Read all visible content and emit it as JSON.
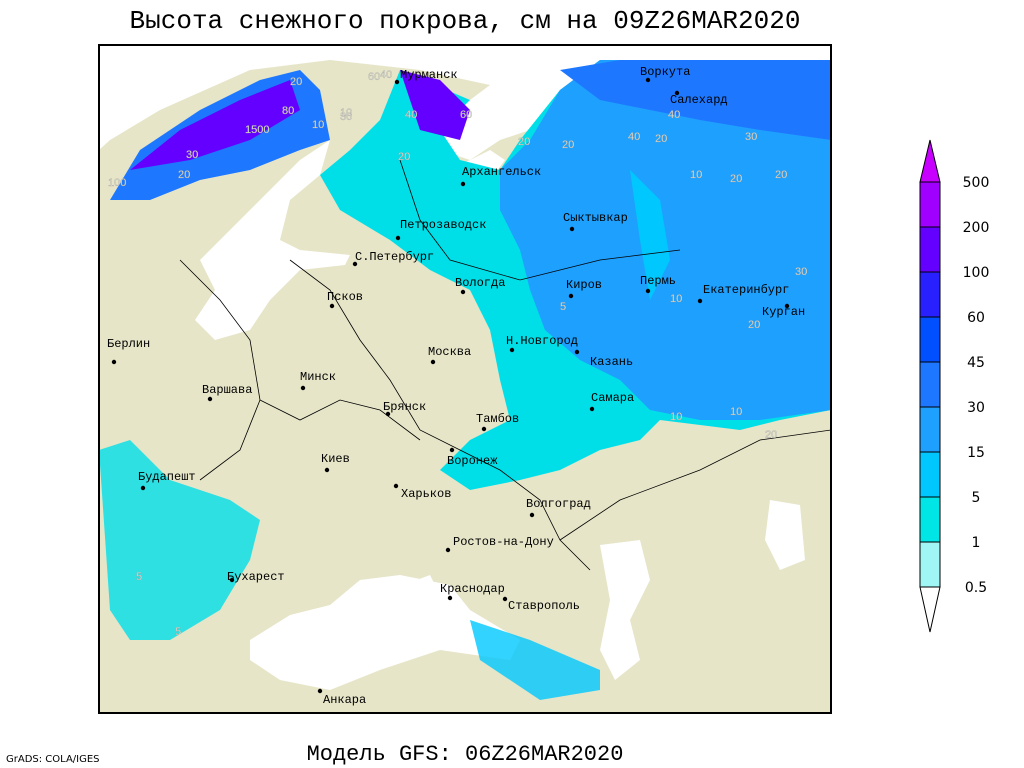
{
  "title": "Высота снежного покрова, см на 09Z26MAR2020",
  "subtitle": "Модель GFS: 06Z26MAR2020",
  "credit": "GrADS: COLA/IGES",
  "map": {
    "cities": [
      "Мурманск",
      "Воркута",
      "Салехард",
      "Архангельск",
      "Петрозаводск",
      "С.Петербург",
      "Сыктывкар",
      "Вологда",
      "Киров",
      "Пермь",
      "Екатеринбург",
      "Курган",
      "Псков",
      "Берлин",
      "Н.Новгород",
      "Москва",
      "Казань",
      "Минск",
      "Варшава",
      "Брянск",
      "Самара",
      "Тамбов",
      "Воронеж",
      "Киев",
      "Будапешт",
      "Харьков",
      "Волгоград",
      "Ростов-на-Дону",
      "Бухарест",
      "Краснодар",
      "Ставрополь",
      "Анкара"
    ],
    "contour_labels": [
      20,
      60,
      40,
      60,
      40,
      30,
      10,
      1500,
      80,
      10,
      30,
      20,
      100,
      20,
      20,
      40,
      20,
      40,
      20,
      30,
      10,
      20,
      20,
      30,
      20,
      10,
      10,
      20,
      10,
      5,
      5,
      5
    ]
  },
  "colorbar": {
    "levels": [
      0.5,
      1,
      5,
      15,
      30,
      45,
      60,
      100,
      200,
      500
    ],
    "colors": [
      "#ffffff",
      "#a0f5f5",
      "#00e6e6",
      "#00c8ff",
      "#1ea0ff",
      "#1e78ff",
      "#0050ff",
      "#2820ff",
      "#6400ff",
      "#a000ff",
      "#c800ff"
    ]
  }
}
